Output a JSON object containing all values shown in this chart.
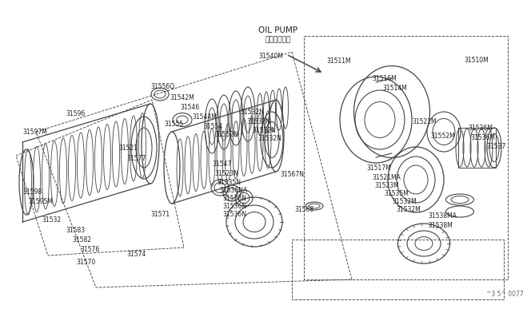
{
  "bg_color": "#ffffff",
  "line_color": "#444444",
  "text_color": "#222222",
  "fig_width": 6.4,
  "fig_height": 3.72,
  "footer_text": "^3 5^ 0077",
  "title_line1": "OIL PUMP",
  "title_line2": "オイルポンプ"
}
